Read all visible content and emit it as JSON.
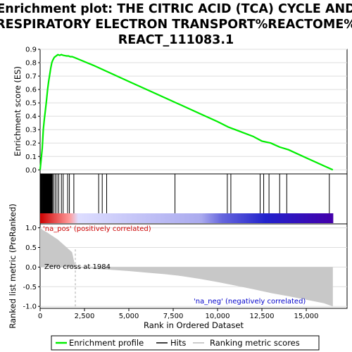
{
  "chart_data": {
    "type": "line",
    "title_lines": [
      "Enrichment plot: THE CITRIC ACID (TCA) CYCLE AND",
      "RESPIRATORY ELECTRON TRANSPORT%REACTOME%",
      "REACT_111083.1"
    ],
    "xlabel": "Rank in Ordered Dataset",
    "es_panel": {
      "ylabel": "Enrichment score (ES)",
      "ylim": [
        -0.03,
        0.9
      ],
      "yticks": [
        "0.0",
        "0.1",
        "0.2",
        "0.3",
        "0.4",
        "0.5",
        "0.6",
        "0.7",
        "0.8",
        "0.9"
      ],
      "ytick_values": [
        0.0,
        0.1,
        0.2,
        0.3,
        0.4,
        0.5,
        0.6,
        0.7,
        0.8,
        0.9
      ],
      "series": [
        {
          "name": "Enrichment profile",
          "color": "#00ee00",
          "x": [
            0,
            60,
            120,
            180,
            240,
            300,
            360,
            420,
            480,
            540,
            600,
            660,
            720,
            800,
            900,
            1000,
            1100,
            1200,
            1300,
            1400,
            1500,
            1600,
            1700,
            1800,
            1900,
            2000,
            3000,
            4000,
            5000,
            6000,
            7000,
            8000,
            9000,
            10000,
            10600,
            11000,
            12000,
            12500,
            13000,
            13500,
            14000,
            15000,
            16000,
            16500
          ],
          "y": [
            0.0,
            0.08,
            0.16,
            0.3,
            0.38,
            0.45,
            0.52,
            0.6,
            0.66,
            0.71,
            0.76,
            0.8,
            0.82,
            0.84,
            0.85,
            0.86,
            0.855,
            0.86,
            0.855,
            0.852,
            0.85,
            0.85,
            0.845,
            0.845,
            0.84,
            0.835,
            0.78,
            0.72,
            0.66,
            0.6,
            0.54,
            0.48,
            0.42,
            0.36,
            0.32,
            0.3,
            0.25,
            0.215,
            0.2,
            0.17,
            0.15,
            0.09,
            0.03,
            0.0
          ]
        }
      ]
    },
    "hits_panel": {
      "series_name": "Hits",
      "hit_positions": [
        20,
        50,
        80,
        110,
        140,
        160,
        180,
        200,
        220,
        240,
        260,
        280,
        300,
        320,
        340,
        360,
        380,
        400,
        420,
        440,
        460,
        480,
        500,
        520,
        540,
        560,
        580,
        600,
        620,
        640,
        660,
        700,
        760,
        850,
        950,
        1050,
        1200,
        1300,
        1550,
        1650,
        1900,
        3300,
        3500,
        3750,
        7600,
        10550,
        10750,
        12400,
        12600,
        12900,
        13500,
        13900,
        16300
      ],
      "gradient_colors": [
        "#cc0000",
        "#ff9999",
        "#ddddff",
        "#aaaaee",
        "#6666dd",
        "#2222cc",
        "#4400aa"
      ]
    },
    "metric_panel": {
      "ylabel": "Ranked list metric (PreRanked)",
      "ylim": [
        -1.05,
        1.1
      ],
      "yticks": [
        "1.0",
        "0.5",
        "0.0",
        "-0.5",
        "-1.0"
      ],
      "ytick_values": [
        1.0,
        0.5,
        0.0,
        -0.5,
        -1.0
      ],
      "series_name": "Ranking metric scores",
      "x": [
        0,
        200,
        400,
        600,
        800,
        1000,
        1200,
        1400,
        1600,
        1800,
        1984,
        2000,
        3000,
        4000,
        5000,
        6000,
        7000,
        8000,
        9000,
        10000,
        11000,
        12000,
        13000,
        14000,
        15000,
        16000,
        16500
      ],
      "y": [
        1.0,
        0.93,
        0.88,
        0.82,
        0.76,
        0.7,
        0.62,
        0.54,
        0.46,
        0.38,
        0.0,
        -0.01,
        -0.04,
        -0.07,
        -0.1,
        -0.14,
        -0.18,
        -0.23,
        -0.3,
        -0.38,
        -0.47,
        -0.56,
        -0.66,
        -0.74,
        -0.83,
        -0.92,
        -1.0
      ],
      "annotations": {
        "positive": "'na_pos' (positively correlated)",
        "zero_cross": "Zero cross at 1984",
        "negative": "'na_neg' (negatively correlated)"
      },
      "zero_cross_rank": 1984
    },
    "xaxis": {
      "xlim": [
        0,
        17300
      ],
      "xticks": [
        "0",
        "2,500",
        "5,000",
        "7,500",
        "10,000",
        "12,500",
        "15,000"
      ],
      "xtick_values": [
        0,
        2500,
        5000,
        7500,
        10000,
        12500,
        15000
      ]
    },
    "legend": {
      "placement": "bottom",
      "entries": [
        {
          "label": "Enrichment profile",
          "color": "#00ee00"
        },
        {
          "label": "Hits",
          "color": "#000000"
        },
        {
          "label": "Ranking metric scores",
          "color": "#bbbbbb"
        }
      ]
    }
  }
}
